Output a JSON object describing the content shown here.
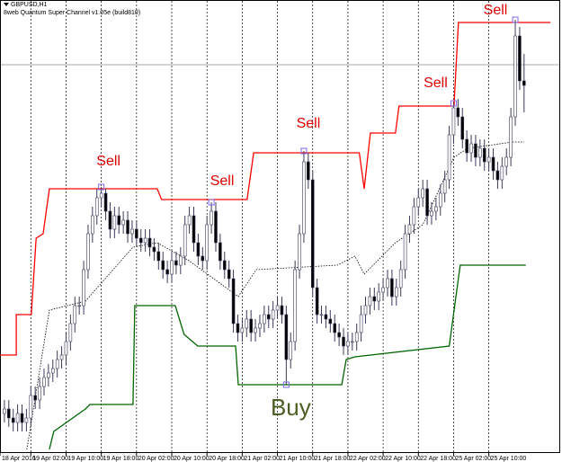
{
  "chart_data": {
    "type": "candlestick",
    "title": "GBPUSD,H1",
    "subtitle": "8web Quantum Super Channel v1.05e (build810)",
    "xlim": [
      -1,
      126
    ],
    "ylim": [
      0,
      500
    ],
    "xticks": [
      {
        "value": -1,
        "label": "18 Apr 2016"
      },
      {
        "value": 6,
        "label": "19 Apr 02:00"
      },
      {
        "value": 14,
        "label": "19 Apr 10:00"
      },
      {
        "value": 22,
        "label": "19 Apr 18:00"
      },
      {
        "value": 30,
        "label": "20 Apr 02:00"
      },
      {
        "value": 38,
        "label": "20 Apr 10:00"
      },
      {
        "value": 46,
        "label": "20 Apr 18:00"
      },
      {
        "value": 54,
        "label": "21 Apr 02:00"
      },
      {
        "value": 62,
        "label": "21 Apr 10:00"
      },
      {
        "value": 70,
        "label": "21 Apr 18:00"
      },
      {
        "value": 78,
        "label": "22 Apr 02:00"
      },
      {
        "value": 86,
        "label": "22 Apr 10:00"
      },
      {
        "value": 94,
        "label": "22 Apr 18:00"
      },
      {
        "value": 102,
        "label": "25 Apr 02:00"
      },
      {
        "value": 110,
        "label": "25 Apr 10:00"
      }
    ],
    "grid": true,
    "up_color": "#ffffff",
    "down_color": "#000000",
    "wick_color": "#3a3a5a",
    "open": [
      40,
      45,
      35,
      30,
      40,
      30,
      35,
      60,
      55,
      70,
      80,
      85,
      90,
      100,
      105,
      120,
      140,
      160,
      160,
      200,
      240,
      260,
      280,
      285,
      265,
      245,
      260,
      250,
      255,
      240,
      245,
      235,
      230,
      235,
      225,
      220,
      210,
      200,
      195,
      210,
      205,
      215,
      250,
      260,
      230,
      215,
      210,
      250,
      265,
      230,
      210,
      200,
      190,
      140,
      130,
      135,
      145,
      130,
      135,
      140,
      150,
      145,
      155,
      160,
      150,
      100,
      120,
      200,
      240,
      320,
      300,
      180,
      150,
      150,
      145,
      140,
      130,
      125,
      115,
      120,
      120,
      130,
      150,
      160,
      170,
      165,
      175,
      180,
      190,
      170,
      180,
      200,
      240,
      250,
      270,
      280,
      290,
      260,
      265,
      270,
      285,
      300,
      350,
      380,
      370,
      345,
      330,
      340,
      325,
      335,
      320,
      325,
      310,
      300,
      315,
      325,
      370,
      460,
      410
    ],
    "high": [
      55,
      55,
      45,
      50,
      50,
      45,
      70,
      70,
      80,
      90,
      95,
      100,
      110,
      115,
      130,
      150,
      170,
      170,
      210,
      250,
      270,
      290,
      292,
      290,
      275,
      270,
      270,
      265,
      265,
      255,
      255,
      245,
      245,
      245,
      235,
      230,
      220,
      210,
      220,
      220,
      225,
      260,
      270,
      270,
      240,
      225,
      260,
      275,
      275,
      240,
      220,
      210,
      200,
      150,
      145,
      155,
      155,
      145,
      150,
      160,
      160,
      165,
      170,
      170,
      160,
      130,
      210,
      250,
      332,
      330,
      310,
      190,
      160,
      160,
      155,
      150,
      140,
      135,
      130,
      130,
      140,
      160,
      170,
      180,
      180,
      185,
      190,
      200,
      200,
      190,
      210,
      250,
      260,
      280,
      290,
      300,
      300,
      275,
      280,
      295,
      310,
      360,
      385,
      390,
      380,
      355,
      350,
      350,
      345,
      345,
      335,
      335,
      320,
      325,
      335,
      380,
      478,
      470,
      440
    ],
    "low": [
      30,
      25,
      20,
      20,
      20,
      20,
      25,
      45,
      45,
      60,
      70,
      75,
      80,
      90,
      95,
      110,
      130,
      150,
      150,
      190,
      230,
      250,
      270,
      255,
      235,
      235,
      240,
      240,
      230,
      230,
      225,
      220,
      220,
      215,
      210,
      200,
      190,
      185,
      185,
      195,
      195,
      205,
      240,
      220,
      205,
      200,
      200,
      240,
      220,
      200,
      190,
      180,
      130,
      120,
      120,
      125,
      120,
      120,
      125,
      130,
      135,
      135,
      145,
      140,
      72,
      90,
      110,
      190,
      230,
      290,
      170,
      140,
      140,
      135,
      130,
      120,
      115,
      105,
      105,
      110,
      110,
      120,
      140,
      150,
      155,
      155,
      165,
      170,
      160,
      160,
      170,
      190,
      230,
      240,
      260,
      270,
      250,
      250,
      255,
      260,
      275,
      290,
      340,
      360,
      335,
      320,
      320,
      315,
      315,
      310,
      310,
      300,
      290,
      290,
      305,
      315,
      360,
      400,
      375
    ],
    "close": [
      45,
      35,
      30,
      40,
      30,
      35,
      60,
      55,
      70,
      80,
      85,
      90,
      100,
      105,
      120,
      140,
      160,
      160,
      200,
      240,
      260,
      280,
      285,
      265,
      245,
      260,
      250,
      255,
      240,
      245,
      235,
      230,
      235,
      225,
      220,
      210,
      200,
      195,
      210,
      205,
      215,
      250,
      260,
      230,
      215,
      210,
      250,
      265,
      230,
      210,
      200,
      190,
      140,
      130,
      135,
      145,
      130,
      135,
      140,
      150,
      145,
      155,
      160,
      150,
      100,
      120,
      200,
      240,
      320,
      300,
      180,
      150,
      150,
      145,
      140,
      130,
      125,
      115,
      120,
      120,
      130,
      150,
      160,
      170,
      165,
      175,
      180,
      190,
      170,
      180,
      200,
      240,
      250,
      270,
      280,
      290,
      260,
      265,
      270,
      285,
      300,
      350,
      380,
      370,
      345,
      330,
      340,
      325,
      335,
      320,
      325,
      310,
      300,
      315,
      325,
      370,
      460,
      410,
      405
    ],
    "series": [
      {
        "color": "#ff0000",
        "style": "solid",
        "x": [
          -1,
          2.7,
          2.7,
          6.1,
          7.2,
          8.8,
          10.2,
          34.7,
          35.7,
          55.1,
          56.6,
          80.6,
          81.7,
          83.1,
          88.8,
          89.6,
          102.1,
          103.1,
          124
        ],
        "values": [
          105,
          105,
          150,
          150,
          235,
          240,
          290,
          290,
          278,
          278,
          330,
          330,
          290,
          352,
          352,
          382,
          382,
          475,
          475
        ]
      },
      {
        "color": "#006400",
        "style": "solid",
        "x": [
          10.2,
          11.2,
          18.4,
          19.4,
          29.2,
          29.6,
          38.8,
          40.8,
          43.9,
          52.5,
          53.1,
          76.6,
          77.6,
          79.6,
          101,
          103.5,
          118.4
        ],
        "values": [
          0,
          20,
          45,
          50,
          50,
          160,
          160,
          128,
          115,
          115,
          72,
          72,
          100,
          103,
          115,
          205,
          205
        ]
      },
      {
        "color": "#000000",
        "style": "dotted",
        "x": [
          5.1,
          10.2,
          18.4,
          29.2,
          34.7,
          41.9,
          53.1,
          57.2,
          75.6,
          79.6,
          81.7,
          88.8,
          95,
          102.1,
          105.2,
          115.4,
          118
        ],
        "values": [
          0,
          155,
          165,
          225,
          230,
          210,
          170,
          200,
          205,
          215,
          195,
          230,
          250,
          325,
          335,
          342,
          342
        ]
      }
    ],
    "price_line": 428,
    "signals": [
      {
        "text": "Sell",
        "bar": 22,
        "side": "high"
      },
      {
        "text": "Sell",
        "bar": 47,
        "side": "high"
      },
      {
        "text": "Sell",
        "bar": 68,
        "side": "high"
      },
      {
        "text": "Sell",
        "bar": 102,
        "side": "high"
      },
      {
        "text": "Sell",
        "bar": 116,
        "side": "high"
      },
      {
        "text": "Buy",
        "bar": 64,
        "side": "low"
      }
    ]
  }
}
